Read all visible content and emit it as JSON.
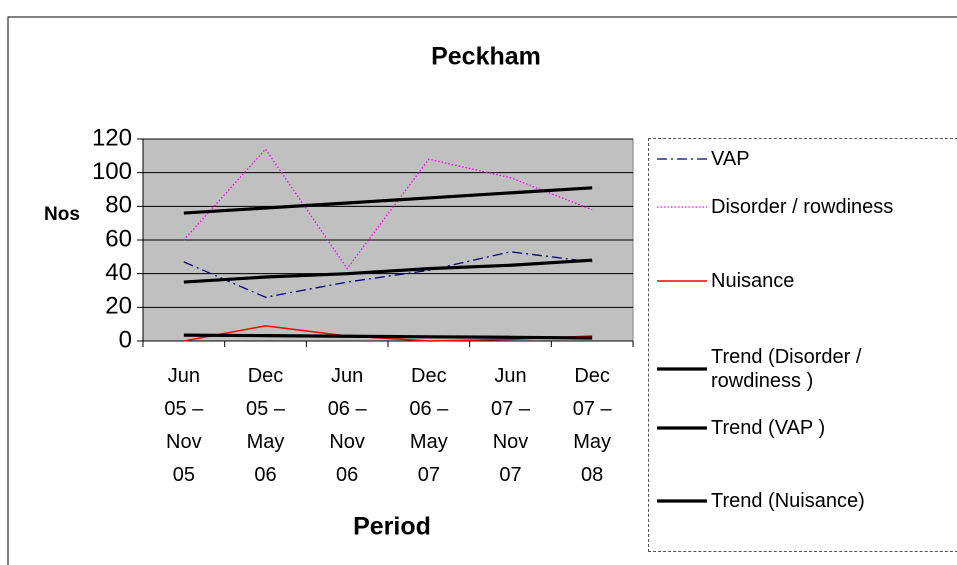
{
  "chart_data": {
    "type": "line",
    "title": "Peckham",
    "x_label": "Period",
    "y_label": "Nos",
    "categories": [
      "Jun 05 – Nov 05",
      "Dec 05 – May 06",
      "Jun 06 – Nov 06",
      "Dec 06 – May 07",
      "Jun 07 – Nov 07",
      "Dec 07 – May 08"
    ],
    "series": [
      {
        "name": "VAP",
        "color": "#000080",
        "line_style": "dashdot",
        "values": [
          47,
          26,
          35,
          42,
          53,
          47
        ]
      },
      {
        "name": "Disorder / rowdiness",
        "color": "#ff00ff",
        "line_style": "dotted",
        "values": [
          60,
          114,
          43,
          108,
          97,
          78
        ]
      },
      {
        "name": "Nuisance",
        "color": "#ff0000",
        "line_style": "solid",
        "values": [
          0,
          9,
          3,
          0,
          1,
          3
        ]
      },
      {
        "name": "Trend (Disorder / rowdiness )",
        "color": "#000000",
        "line_style": "thick",
        "values": [
          76,
          79,
          82,
          85,
          88,
          91
        ]
      },
      {
        "name": "Trend (VAP )",
        "color": "#000000",
        "line_style": "thick",
        "values": [
          35,
          38,
          40,
          43,
          45,
          48
        ]
      },
      {
        "name": "Trend (Nuisance)",
        "color": "#000000",
        "line_style": "thick",
        "values": [
          3.5,
          3.2,
          2.8,
          2.5,
          2.2,
          1.8
        ]
      }
    ],
    "ylim": [
      0,
      120
    ],
    "yticks": [
      0,
      20,
      40,
      60,
      80,
      100,
      120
    ],
    "grid": true,
    "legend": "right"
  }
}
